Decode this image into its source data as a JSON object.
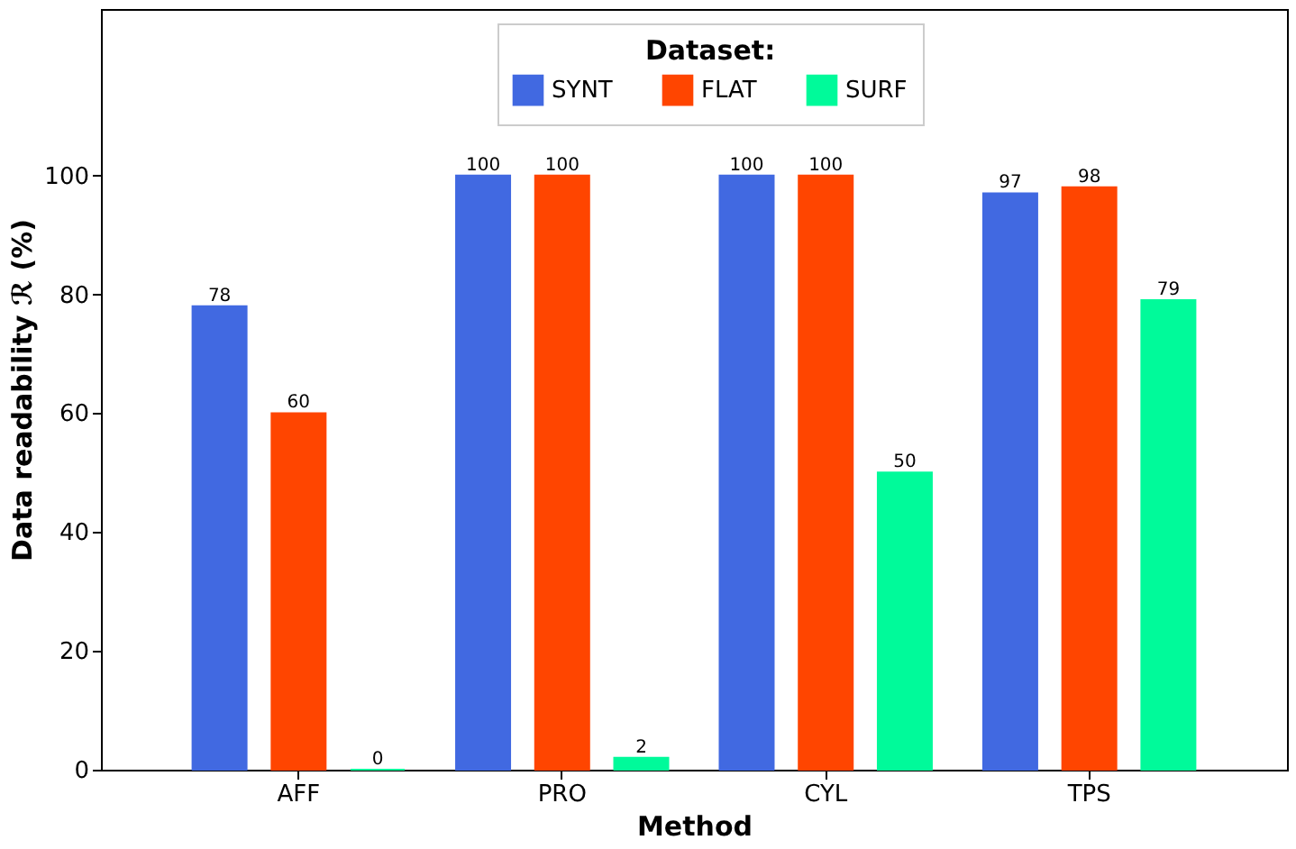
{
  "chart_data": {
    "type": "bar",
    "xlabel": "Method",
    "ylabel": "Data readability ℛ (%)",
    "legend_title": "Dataset:",
    "categories": [
      "AFF",
      "PRO",
      "CYL",
      "TPS"
    ],
    "series": [
      {
        "name": "SYNT",
        "color": "#4169e1",
        "values": [
          78,
          100,
          100,
          97
        ]
      },
      {
        "name": "FLAT",
        "color": "#ff4500",
        "values": [
          60,
          100,
          100,
          98
        ]
      },
      {
        "name": "SURF",
        "color": "#00fa9a",
        "values": [
          0,
          2,
          50,
          79
        ]
      }
    ],
    "ylim": [
      0,
      128
    ],
    "yticks": [
      0,
      20,
      40,
      60,
      80,
      100
    ],
    "data_labels": true,
    "grid": false,
    "legend": "top"
  }
}
